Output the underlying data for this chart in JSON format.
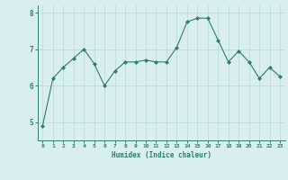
{
  "x": [
    0,
    1,
    2,
    3,
    4,
    5,
    6,
    7,
    8,
    9,
    10,
    11,
    12,
    13,
    14,
    15,
    16,
    17,
    18,
    19,
    20,
    21,
    22,
    23
  ],
  "y": [
    4.9,
    6.2,
    6.5,
    6.75,
    7.0,
    6.6,
    6.0,
    6.4,
    6.65,
    6.65,
    6.7,
    6.65,
    6.65,
    7.05,
    7.75,
    7.85,
    7.85,
    7.25,
    6.65,
    6.95,
    6.65,
    6.2,
    6.5,
    6.25
  ],
  "line_color": "#2e7d6e",
  "marker_color": "#2e7d6e",
  "bg_color": "#d9eeee",
  "grid_color": "#b8d8d8",
  "xlabel": "Humidex (Indice chaleur)",
  "xlabel_color": "#2e7d6e",
  "tick_color": "#2e7d6e",
  "ylim_min": 4.5,
  "ylim_max": 8.2,
  "xlim_min": -0.5,
  "xlim_max": 23.5,
  "yticks": [
    5,
    6,
    7,
    8
  ],
  "xticks": [
    0,
    1,
    2,
    3,
    4,
    5,
    6,
    7,
    8,
    9,
    10,
    11,
    12,
    13,
    14,
    15,
    16,
    17,
    18,
    19,
    20,
    21,
    22,
    23
  ]
}
